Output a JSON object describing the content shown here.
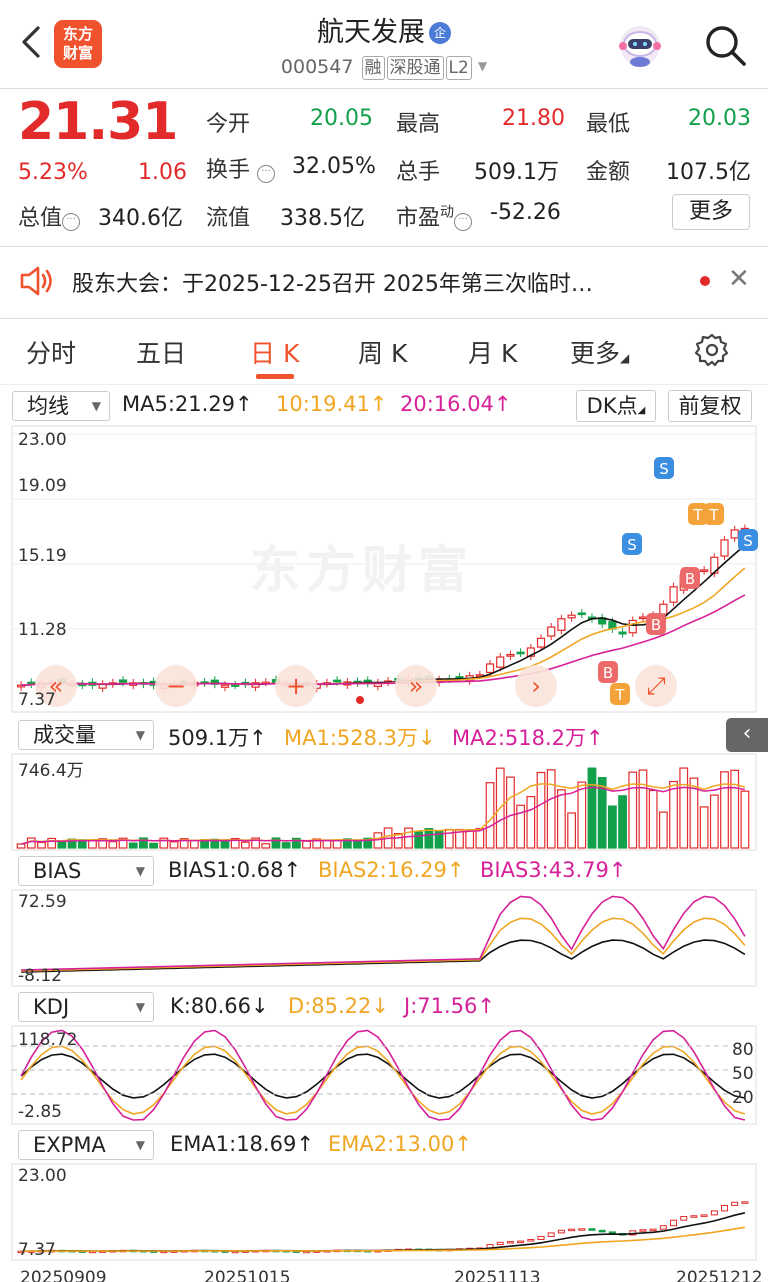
{
  "header": {
    "logo_text": "东方\n财富",
    "stock_name": "航天发展",
    "name_badge": "企",
    "code": "000547",
    "tags": [
      "融",
      "深股通",
      "L2"
    ]
  },
  "quote": {
    "price": "21.31",
    "change_pct": "5.23%",
    "change_amt": "1.06",
    "fields": [
      {
        "label": "今开",
        "value": "20.05",
        "color": "green"
      },
      {
        "label": "最高",
        "value": "21.80",
        "color": "red"
      },
      {
        "label": "最低",
        "value": "20.03",
        "color": "green"
      },
      {
        "label": "换手",
        "value": "32.05%",
        "color": "dark"
      },
      {
        "label": "总手",
        "value": "509.1万",
        "color": "dark"
      },
      {
        "label": "金额",
        "value": "107.5亿",
        "color": "dark"
      },
      {
        "label": "总值",
        "value": "340.6亿",
        "color": "dark"
      },
      {
        "label": "流值",
        "value": "338.5亿",
        "color": "dark"
      },
      {
        "label": "市盈",
        "value": "-52.26",
        "color": "dark"
      }
    ],
    "pe_superscript": "动",
    "more_label": "更多"
  },
  "notice": {
    "text": "股东大会：于2025-12-25召开 2025年第三次临时…"
  },
  "tabs": [
    "分时",
    "五日",
    "日 K",
    "周 K",
    "月 K",
    "更多"
  ],
  "active_tab": 2,
  "kline": {
    "ma_selector": "均线",
    "ma5": "MA5:21.29",
    "ma10": "10:19.41",
    "ma20": "20:16.04",
    "dk_button": "DK点",
    "adjust_button": "前复权",
    "axis_labels": [
      "23.00",
      "19.09",
      "15.19",
      "11.28",
      "7.37"
    ],
    "watermark": "东方财富",
    "signals": [
      "S",
      "S",
      "S",
      "B",
      "B",
      "B",
      "T",
      "T",
      "T"
    ]
  },
  "volume": {
    "selector": "成交量",
    "value": "509.1万",
    "ma1": "MA1:528.3万",
    "ma2": "MA2:518.2万",
    "axis_top": "746.4万"
  },
  "bias": {
    "selector": "BIAS",
    "b1": "BIAS1:0.68",
    "b2": "BIAS2:16.29",
    "b3": "BIAS3:43.79",
    "axis_top": "72.59",
    "axis_bottom": "-8.12"
  },
  "kdj": {
    "selector": "KDJ",
    "k": "K:80.66",
    "d": "D:85.22",
    "j": "J:71.56",
    "axis_top": "118.72",
    "axis_bottom": "-2.85",
    "levels": [
      "80",
      "50",
      "20"
    ]
  },
  "expma": {
    "selector": "EXPMA",
    "ema1": "EMA1:18.69",
    "ema2": "EMA2:13.00",
    "axis_top": "23.00",
    "axis_bottom": "7.37",
    "dates": [
      "20250909",
      "20251015",
      "20251113",
      "20251212"
    ]
  },
  "colors": {
    "up": "#e32a2a",
    "down": "#13a04a",
    "ma10": "#f0a623",
    "ma20": "#d6209a",
    "accent": "#f0522d"
  }
}
